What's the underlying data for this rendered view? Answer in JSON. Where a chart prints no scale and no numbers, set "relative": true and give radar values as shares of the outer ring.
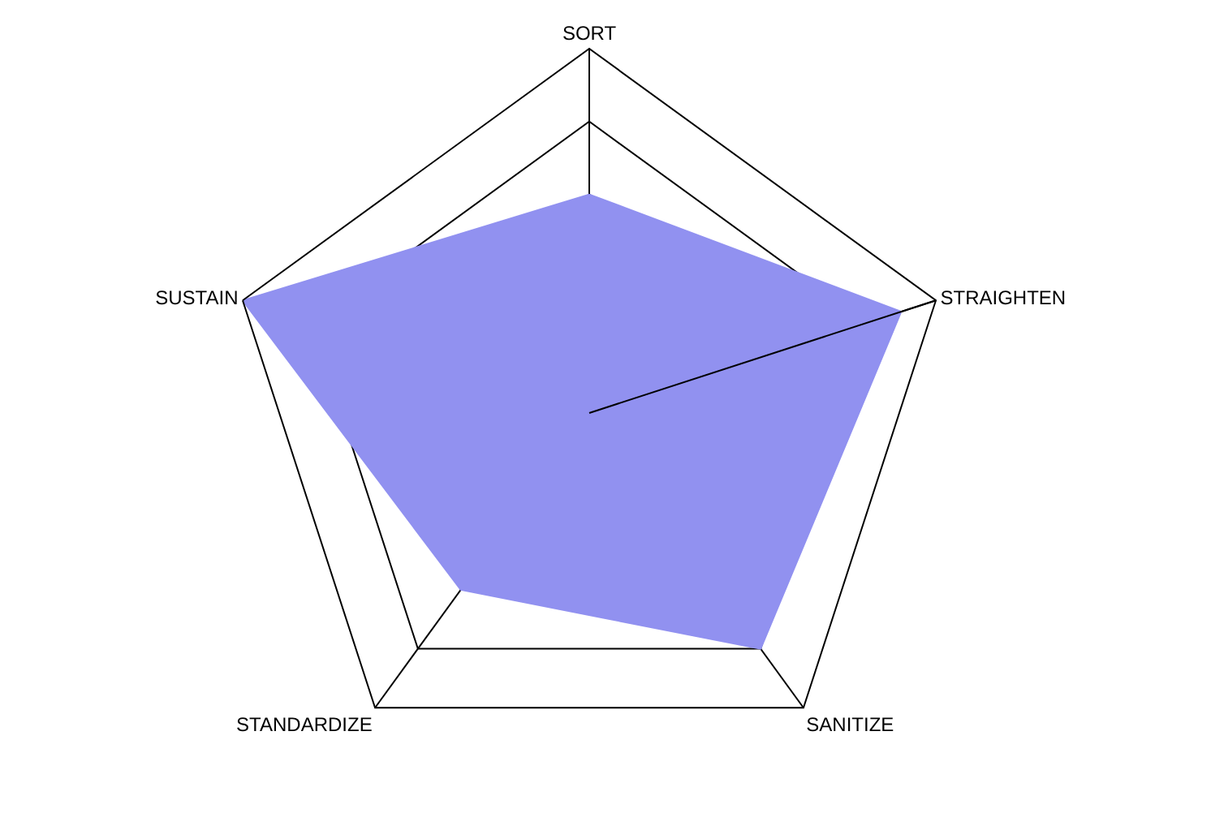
{
  "chart_data": {
    "type": "radar",
    "relative": true,
    "categories": [
      "SORT",
      "STRAIGHTEN",
      "SANITIZE",
      "STANDARDIZE",
      "SUSTAIN"
    ],
    "series": [
      {
        "color": "#9191f0",
        "values": [
          0.6,
          0.9,
          0.8,
          0.6,
          1.0
        ]
      }
    ]
  }
}
